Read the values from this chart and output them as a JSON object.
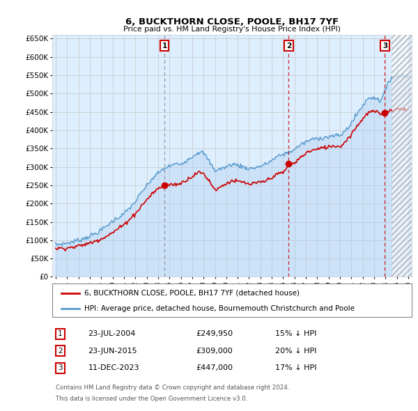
{
  "title": "6, BUCKTHORN CLOSE, POOLE, BH17 7YF",
  "subtitle": "Price paid vs. HM Land Registry's House Price Index (HPI)",
  "legend_line1": "6, BUCKTHORN CLOSE, POOLE, BH17 7YF (detached house)",
  "legend_line2": "HPI: Average price, detached house, Bournemouth Christchurch and Poole",
  "footnote1": "Contains HM Land Registry data © Crown copyright and database right 2024.",
  "footnote2": "This data is licensed under the Open Government Licence v3.0.",
  "hpi_color": "#5599cc",
  "price_color": "#cc0000",
  "background_color": "#ffffff",
  "plot_bg_color": "#ddeeff",
  "grid_color": "#cccccc",
  "ylim": [
    0,
    660000
  ],
  "yticks": [
    0,
    50000,
    100000,
    150000,
    200000,
    250000,
    300000,
    350000,
    400000,
    450000,
    500000,
    550000,
    600000,
    650000
  ],
  "ytick_labels": [
    "£0",
    "£50K",
    "£100K",
    "£150K",
    "£200K",
    "£250K",
    "£300K",
    "£350K",
    "£400K",
    "£450K",
    "£500K",
    "£550K",
    "£600K",
    "£650K"
  ],
  "sales": [
    {
      "date_x": 2004.56,
      "price": 249950,
      "label": "1"
    },
    {
      "date_x": 2015.48,
      "price": 309000,
      "label": "2"
    },
    {
      "date_x": 2023.94,
      "price": 447000,
      "label": "3"
    }
  ],
  "table_rows": [
    {
      "num": "1",
      "date": "23-JUL-2004",
      "price": "£249,950",
      "info": "15% ↓ HPI"
    },
    {
      "num": "2",
      "date": "23-JUN-2015",
      "price": "£309,000",
      "info": "20% ↓ HPI"
    },
    {
      "num": "3",
      "date": "11-DEC-2023",
      "price": "£447,000",
      "info": "17% ↓ HPI"
    }
  ],
  "xmin": 1995.0,
  "xmax": 2026.0,
  "hatch_start": 2024.5
}
